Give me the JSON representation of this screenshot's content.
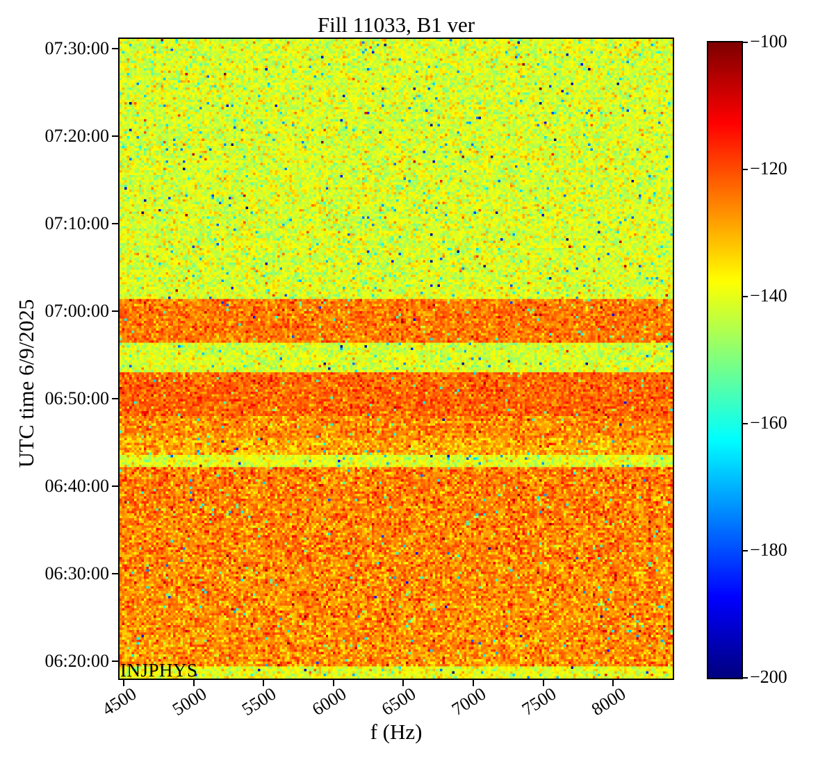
{
  "chart_data": {
    "type": "heatmap",
    "title": "Fill 11033, B1 ver",
    "xlabel": "f (Hz)",
    "ylabel": "UTC time 6/9/2025",
    "annotation": "INJPHYS",
    "colormap": "jet",
    "grid": false,
    "x_range_hz": [
      4445,
      8427
    ],
    "x_ticks": [
      4500,
      5000,
      5500,
      6000,
      6500,
      7000,
      7500,
      8000
    ],
    "y_ticks": [
      "07:30:00",
      "07:20:00",
      "07:10:00",
      "07:00:00",
      "06:50:00",
      "06:40:00",
      "06:30:00",
      "06:20:00"
    ],
    "time_axis": {
      "top": "07:31:07",
      "bottom": "06:18:01"
    },
    "colorbar": {
      "min": -200,
      "max": -100,
      "ticks": [
        -100,
        -120,
        -140,
        -160,
        -180,
        -200
      ],
      "tick_labels": [
        "−100",
        "−120",
        "−140",
        "−160",
        "−180",
        "−200"
      ],
      "position": "right"
    },
    "bands": [
      {
        "t_top": "07:31:07",
        "t_bottom": "07:01:28",
        "mean_db": -141.0,
        "std_db": 5.0,
        "desc": "yellow-green noise floor"
      },
      {
        "t_top": "07:01:28",
        "t_bottom": "06:56:15",
        "mean_db": -124.5,
        "std_db": 4.5,
        "desc": "elevated orange band"
      },
      {
        "t_top": "06:56:15",
        "t_bottom": "06:53:06",
        "mean_db": -141.5,
        "std_db": 4.5,
        "desc": "quiet yellow-green gap"
      },
      {
        "t_top": "06:53:06",
        "t_bottom": "06:48:07",
        "mean_db": -122.5,
        "std_db": 4.5,
        "desc": "strong orange band"
      },
      {
        "t_top": "06:48:07",
        "t_bottom": "06:45:35",
        "mean_db": -126.0,
        "std_db": 5.0,
        "desc": "orange-yellow band"
      },
      {
        "t_top": "06:45:35",
        "t_bottom": "06:43:36",
        "mean_db": -129.5,
        "std_db": 5.5,
        "desc": "fading yellow-orange band"
      },
      {
        "t_top": "06:43:36",
        "t_bottom": "06:42:11",
        "mean_db": -140.5,
        "std_db": 4.5,
        "desc": "quiet yellow-green gap"
      },
      {
        "t_top": "06:42:11",
        "t_bottom": "06:19:20",
        "mean_db": -124.8,
        "mean2_db": -127.0,
        "std_db": 5.5,
        "desc": "broad orange region (INJPHYS)"
      },
      {
        "t_top": "06:19:20",
        "t_bottom": "06:18:01",
        "mean_db": -139.5,
        "std_db": 4.5,
        "desc": "green-yellow strip at start"
      }
    ],
    "vline": {
      "f_hz": 8250,
      "t_top": "06:42:11",
      "t_bottom": "06:18:01",
      "delta_db": 3,
      "desc": "faint vertical feature"
    }
  }
}
